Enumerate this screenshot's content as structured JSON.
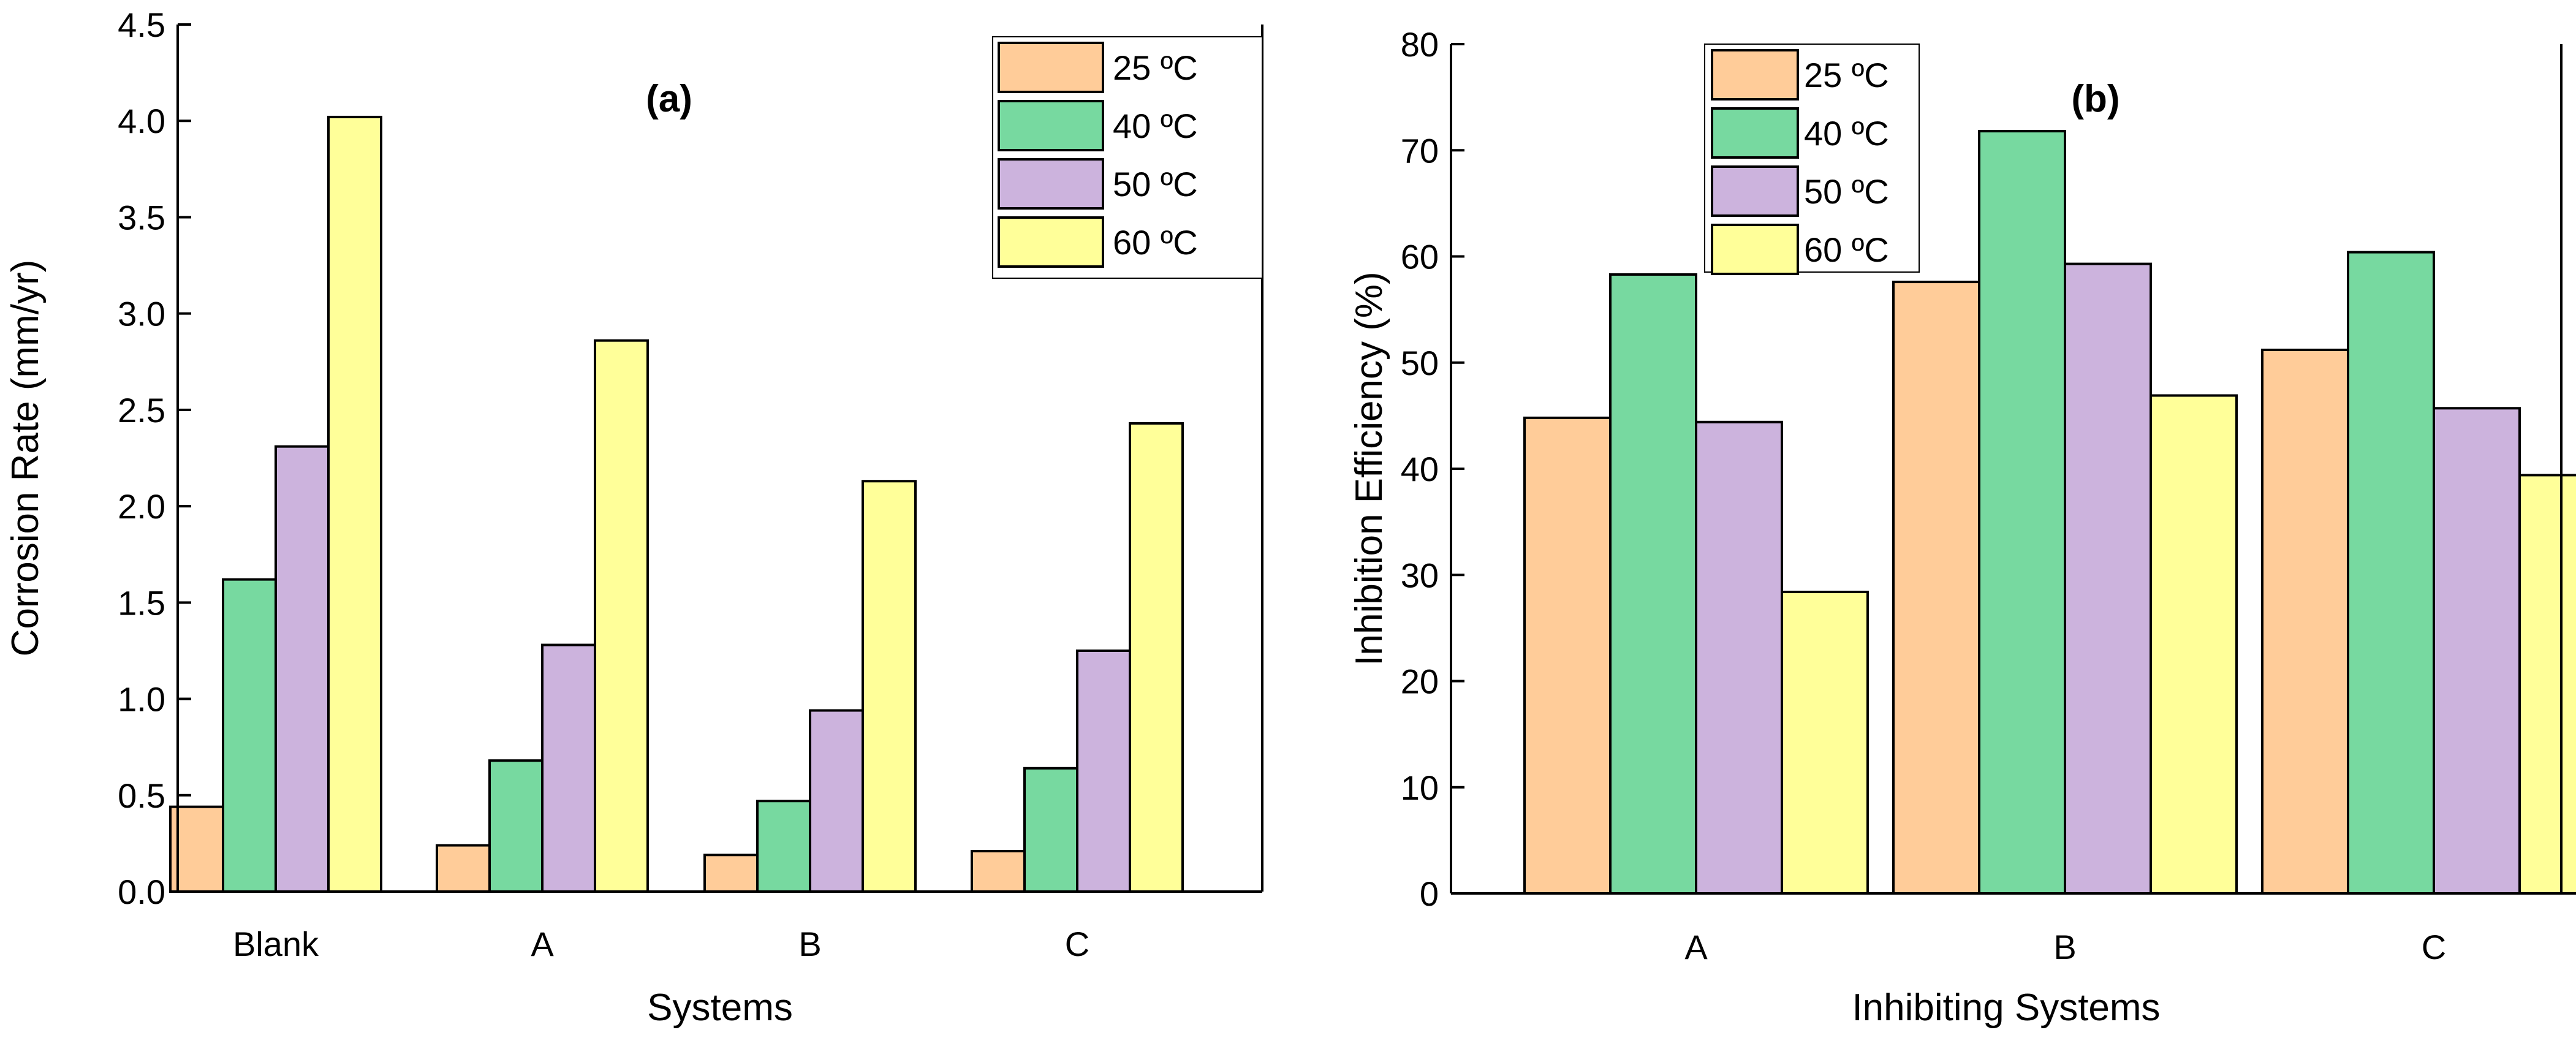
{
  "chart_data": [
    {
      "type": "bar",
      "title": "(a)",
      "xlabel": "Systems",
      "ylabel": "Corrosion Rate (mm/yr)",
      "ylim": [
        0,
        4.5
      ],
      "yticks": [
        "0.0",
        "0.5",
        "1.0",
        "1.5",
        "2.0",
        "2.5",
        "3.0",
        "3.5",
        "4.0",
        "4.5"
      ],
      "categories": [
        "Blank",
        "A",
        "B",
        "C"
      ],
      "legend_position": "top-right",
      "series": [
        {
          "name": "25 ºC",
          "color": "#ffcc99",
          "values": [
            0.44,
            0.24,
            0.19,
            0.21
          ]
        },
        {
          "name": "40 ºC",
          "color": "#77d9a0",
          "values": [
            1.62,
            0.68,
            0.47,
            0.64
          ]
        },
        {
          "name": "50 ºC",
          "color": "#ccb3dd",
          "values": [
            2.31,
            1.28,
            0.94,
            1.25
          ]
        },
        {
          "name": "60 ºC",
          "color": "#ffff99",
          "values": [
            4.02,
            2.86,
            2.13,
            2.43
          ]
        }
      ]
    },
    {
      "type": "bar",
      "title": "(b)",
      "xlabel": "Inhibiting Systems",
      "ylabel": "Inhibition Efficiency (%)",
      "ylim": [
        0,
        80
      ],
      "yticks": [
        "0",
        "10",
        "20",
        "30",
        "40",
        "50",
        "60",
        "70",
        "80"
      ],
      "categories": [
        "A",
        "B",
        "C"
      ],
      "legend_position": "top-left",
      "series": [
        {
          "name": "25 ºC",
          "color": "#ffcc99",
          "values": [
            44.8,
            57.6,
            51.2
          ]
        },
        {
          "name": "40 ºC",
          "color": "#77d9a0",
          "values": [
            58.3,
            71.8,
            60.4
          ]
        },
        {
          "name": "50 ºC",
          "color": "#ccb3dd",
          "values": [
            44.4,
            59.3,
            45.7
          ]
        },
        {
          "name": "60 ºC",
          "color": "#ffff99",
          "values": [
            28.4,
            46.9,
            39.4
          ]
        }
      ]
    }
  ]
}
